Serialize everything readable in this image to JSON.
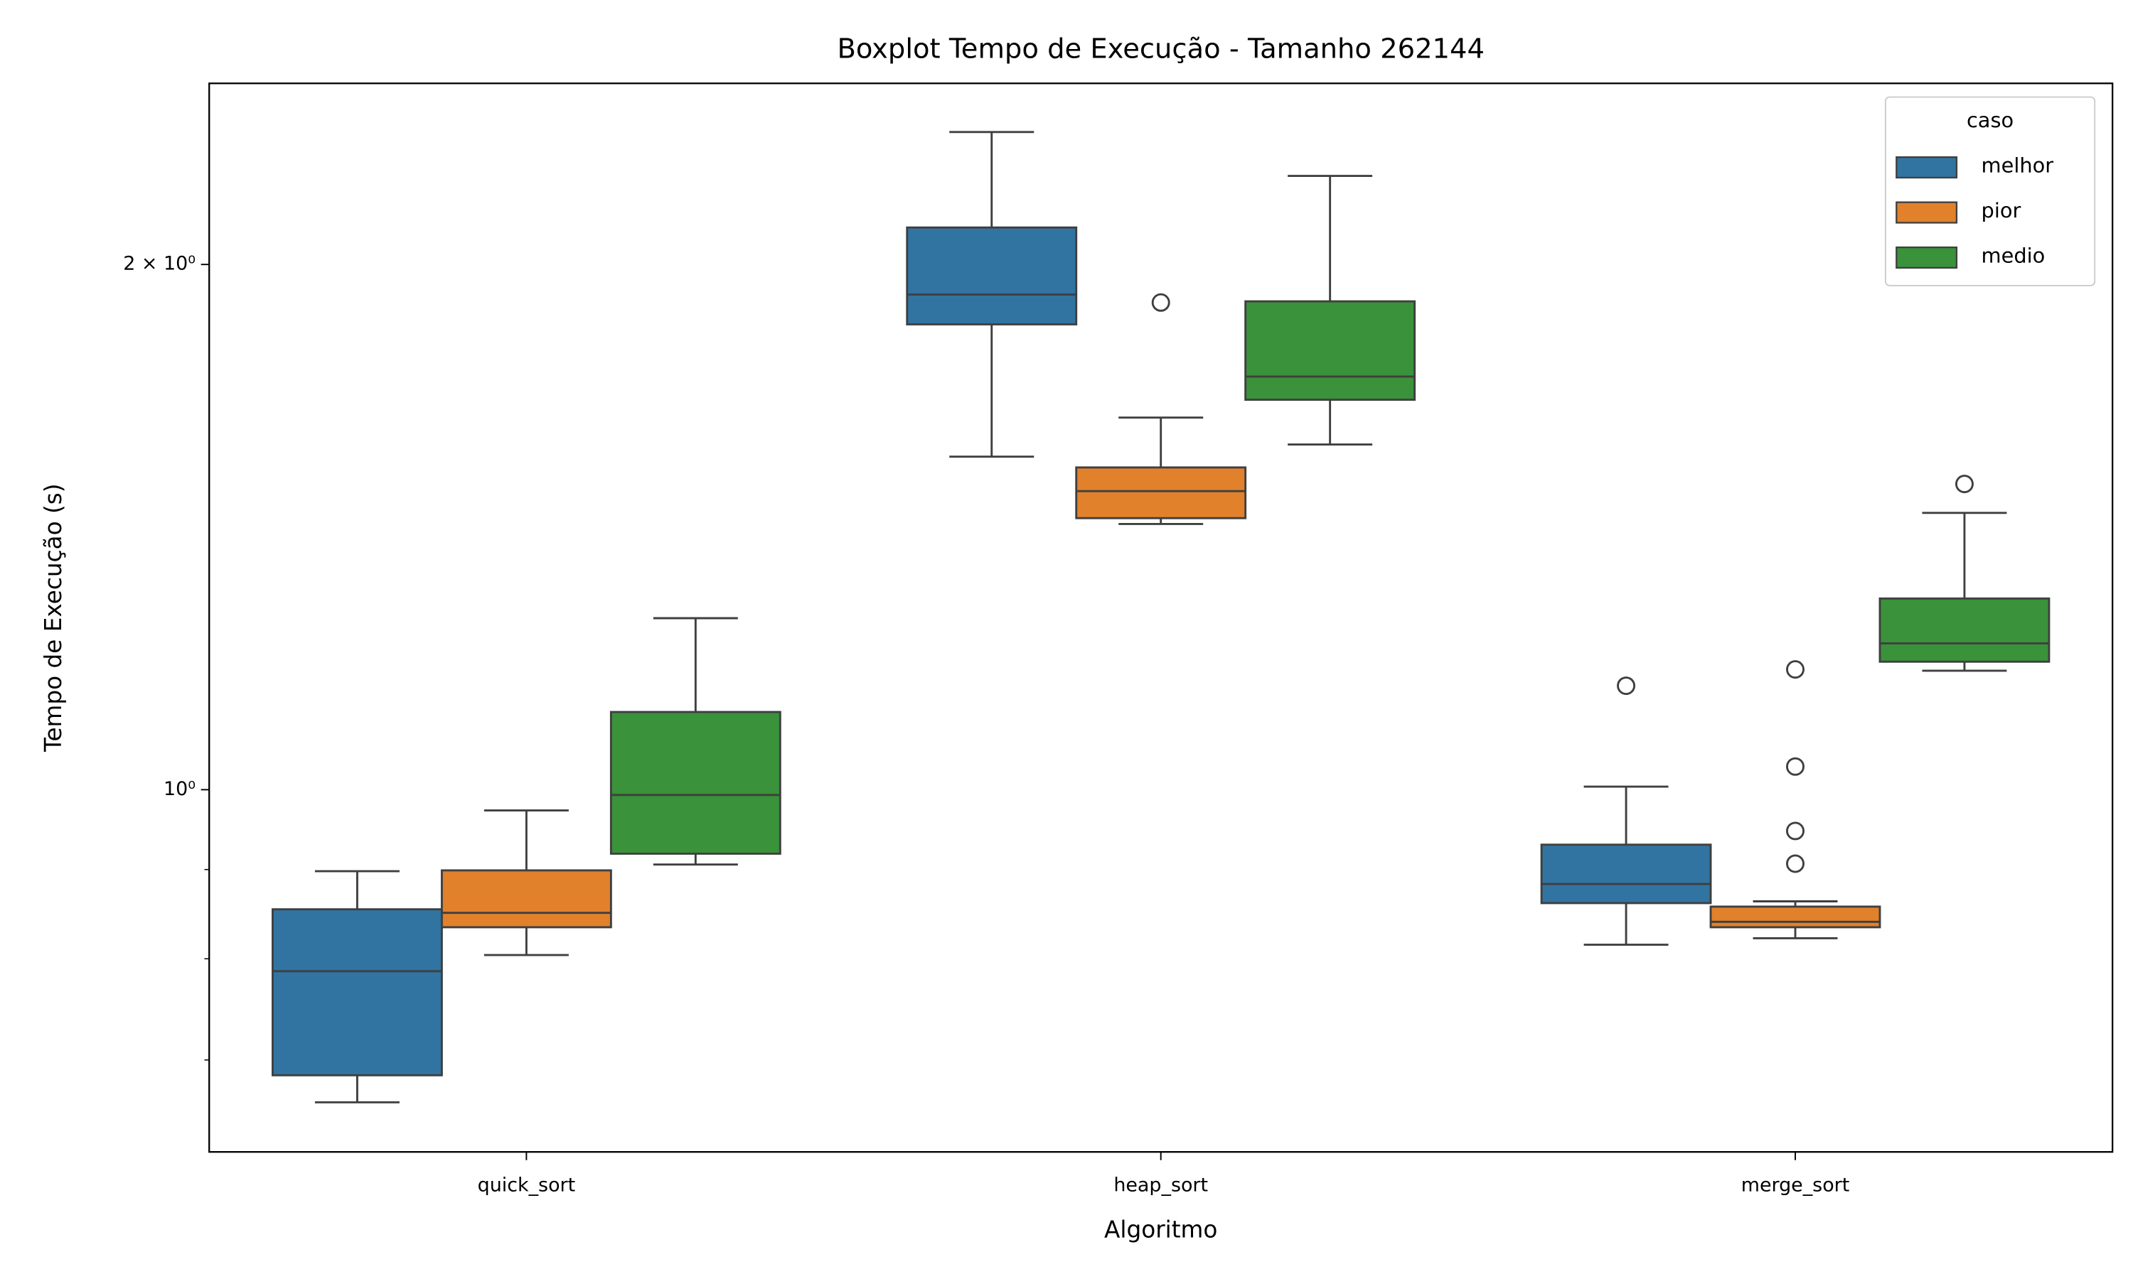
{
  "chart_data": {
    "type": "boxplot",
    "title": "Boxplot Tempo de Execução - Tamanho 262144",
    "x_label": "Algoritmo",
    "y_label": "Tempo de Execução (s)",
    "categories": [
      "quick_sort",
      "heap_sort",
      "merge_sort"
    ],
    "y_scale": "log",
    "ylim": [
      0.62,
      2.54
    ],
    "yticks": [
      {
        "value": 1,
        "label": "10⁰"
      },
      {
        "value": 2,
        "label": "2 × 10⁰"
      }
    ],
    "yminorticks": [
      0.7,
      0.8,
      0.9
    ],
    "legend_title": "caso",
    "legend_loc": "upper right",
    "series": [
      {
        "name": "melhor",
        "color": "#3274a1",
        "boxes": [
          {
            "whisker_low": 0.662,
            "q1": 0.686,
            "median": 0.787,
            "q3": 0.854,
            "whisker_high": 0.898,
            "outliers": []
          },
          {
            "whisker_low": 1.552,
            "q1": 1.848,
            "median": 1.922,
            "q3": 2.1,
            "whisker_high": 2.382,
            "outliers": []
          },
          {
            "whisker_low": 0.815,
            "q1": 0.861,
            "median": 0.883,
            "q3": 0.93,
            "whisker_high": 1.004,
            "outliers": [
              1.147
            ]
          }
        ]
      },
      {
        "name": "pior",
        "color": "#e1812c",
        "boxes": [
          {
            "whisker_low": 0.804,
            "q1": 0.834,
            "median": 0.85,
            "q3": 0.899,
            "whisker_high": 0.973,
            "outliers": []
          },
          {
            "whisker_low": 1.42,
            "q1": 1.431,
            "median": 1.483,
            "q3": 1.53,
            "whisker_high": 1.634,
            "outliers": [
              1.902
            ]
          },
          {
            "whisker_low": 0.822,
            "q1": 0.834,
            "median": 0.84,
            "q3": 0.857,
            "whisker_high": 0.863,
            "outliers": [
              1.172,
              1.031,
              0.947,
              0.907
            ]
          }
        ]
      },
      {
        "name": "medio",
        "color": "#3a923a",
        "boxes": [
          {
            "whisker_low": 0.906,
            "q1": 0.919,
            "median": 0.993,
            "q3": 1.108,
            "whisker_high": 1.254,
            "outliers": []
          },
          {
            "whisker_low": 1.577,
            "q1": 1.673,
            "median": 1.725,
            "q3": 1.905,
            "whisker_high": 2.248,
            "outliers": []
          },
          {
            "whisker_low": 1.17,
            "q1": 1.184,
            "median": 1.213,
            "q3": 1.287,
            "whisker_high": 1.441,
            "outliers": [
              1.497
            ]
          }
        ]
      }
    ]
  }
}
